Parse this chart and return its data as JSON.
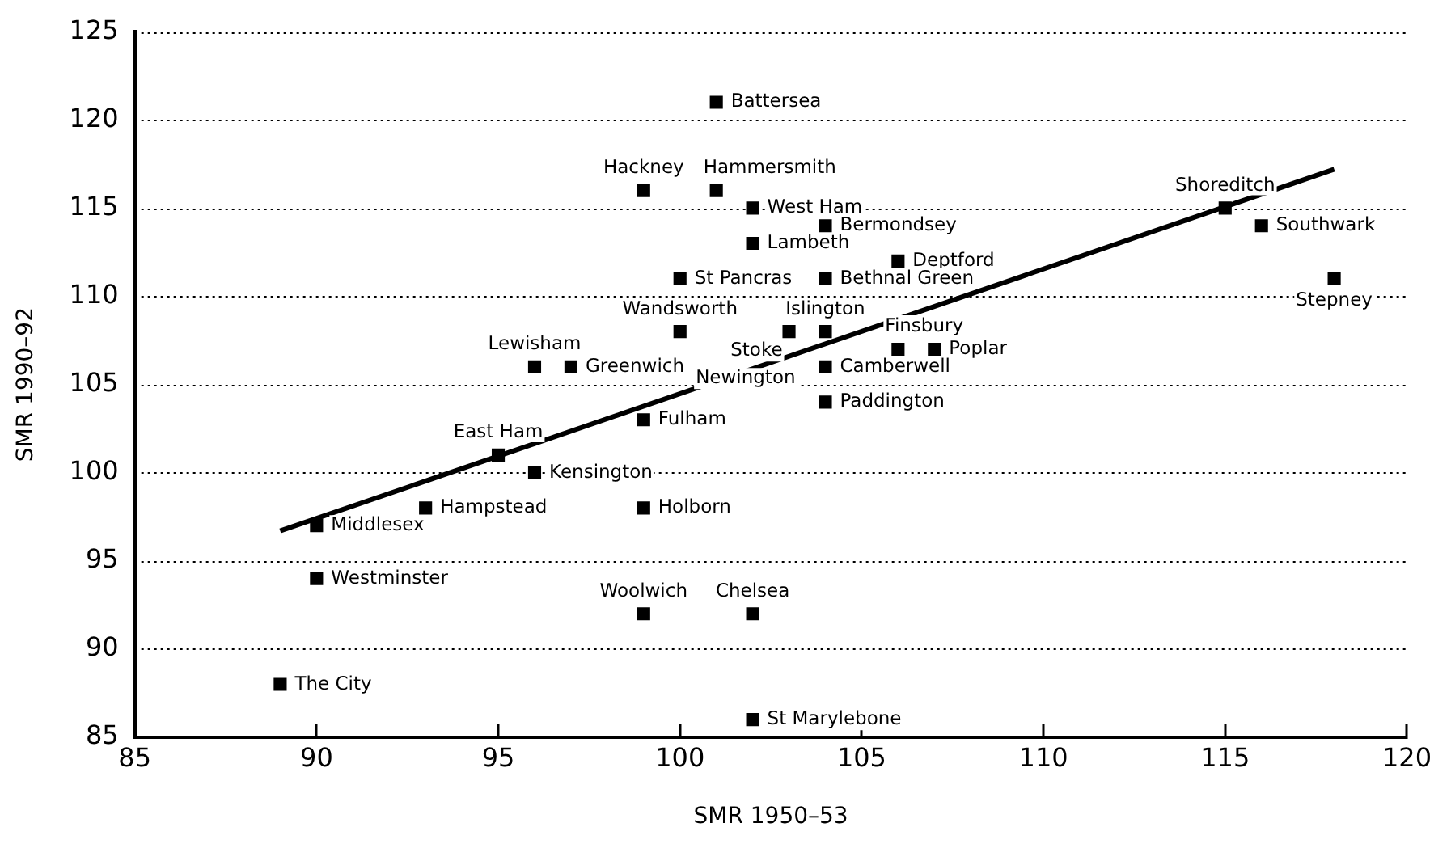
{
  "chart_data": {
    "type": "scatter",
    "xlabel": "SMR 1950–53",
    "ylabel": "SMR 1990–92",
    "xlim": [
      85,
      120
    ],
    "xticks": [
      85,
      90,
      95,
      100,
      105,
      110,
      115,
      120
    ],
    "ylim": [
      85,
      125
    ],
    "yticks": [
      85,
      90,
      95,
      100,
      105,
      110,
      115,
      120,
      125
    ],
    "grid": "y",
    "legend": false,
    "marker": "square",
    "series": [
      {
        "color": "#000000",
        "x": [
          101,
          99,
          101,
          102,
          104,
          102,
          106,
          100,
          104,
          100,
          104,
          103,
          106,
          107,
          96,
          97,
          104,
          104,
          99,
          95,
          96,
          93,
          99,
          90,
          90,
          99,
          102,
          89,
          102,
          115,
          116,
          118
        ],
        "values": [
          121,
          116,
          116,
          115,
          114,
          113,
          112,
          111,
          111,
          108,
          108,
          108,
          107,
          107,
          106,
          106,
          106,
          104,
          103,
          101,
          100,
          98,
          98,
          97,
          94,
          92,
          92,
          88,
          86,
          115,
          114,
          111
        ],
        "value_labels": [
          "Battersea",
          "Hackney",
          "Hammersmith",
          "West Ham",
          "Bermondsey",
          "Lambeth",
          "Deptford",
          "St Pancras",
          "Bethnal Green",
          "Wandsworth",
          "Islington",
          "Stoke Newington",
          "Finsbury",
          "Poplar",
          "Lewisham",
          "Greenwich",
          "Camberwell",
          "Paddington",
          "Fulham",
          "East Ham",
          "Kensington",
          "Hampstead",
          "Holborn",
          "Middlesex",
          "Westminster",
          "Woolwich",
          "Chelsea",
          "The City",
          "St Marylebone",
          "Shoreditch",
          "Southwark",
          "Stepney"
        ]
      },
      {
        "type": "line",
        "color": "#000000",
        "marker": "none",
        "x": [
          89,
          118
        ],
        "values": [
          96.7,
          117.2
        ]
      }
    ]
  }
}
